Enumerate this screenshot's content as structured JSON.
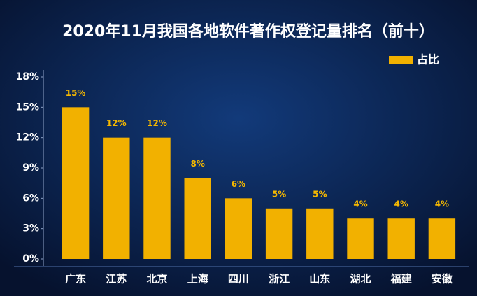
{
  "chart_data": {
    "type": "bar",
    "title": "2020年11月我国各地软件著作权登记量排名（前十）",
    "categories": [
      "广东",
      "江苏",
      "北京",
      "上海",
      "四川",
      "浙江",
      "山东",
      "湖北",
      "福建",
      "安徽"
    ],
    "series": [
      {
        "name": "占比",
        "color": "#f2b100",
        "values": [
          15,
          12,
          12,
          8,
          6,
          5,
          5,
          4,
          4,
          4
        ],
        "value_labels": [
          "15%",
          "12%",
          "12%",
          "8%",
          "6%",
          "5%",
          "5%",
          "4%",
          "4%",
          "4%"
        ]
      }
    ],
    "ylim": [
      0,
      18
    ],
    "yticks": [
      {
        "value": 0,
        "label": "0%"
      },
      {
        "value": 3,
        "label": "3%"
      },
      {
        "value": 6,
        "label": "6%"
      },
      {
        "value": 9,
        "label": "9%"
      },
      {
        "value": 12,
        "label": "12%"
      },
      {
        "value": 15,
        "label": "15%"
      },
      {
        "value": 18,
        "label": "18%"
      }
    ],
    "legend": "top-right"
  }
}
